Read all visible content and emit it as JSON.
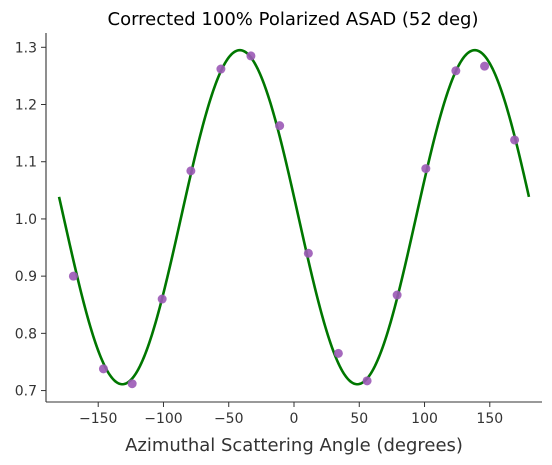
{
  "chart_data": {
    "type": "scatter",
    "title": "Corrected 100% Polarized ASAD (52 deg)",
    "xlabel": "Azimuthal Scattering Angle (degrees)",
    "ylabel": "",
    "xlim": [
      -190,
      190
    ],
    "ylim": [
      0.68,
      1.325
    ],
    "xticks": [
      -150,
      -100,
      -50,
      0,
      50,
      100,
      150
    ],
    "xtick_labels": [
      "−150",
      "−100",
      "−50",
      "0",
      "50",
      "100",
      "150"
    ],
    "yticks": [
      0.7,
      0.8,
      0.9,
      1.0,
      1.1,
      1.2,
      1.3
    ],
    "ytick_labels": [
      "0.7",
      "0.8",
      "0.9",
      "1.0",
      "1.1",
      "1.2",
      "1.3"
    ],
    "grid": false,
    "series": [
      {
        "kind": "scatter",
        "color": "#9b59b6",
        "points": [
          {
            "x": -169,
            "y": 0.9
          },
          {
            "x": -146,
            "y": 0.738
          },
          {
            "x": -124,
            "y": 0.712
          },
          {
            "x": -101,
            "y": 0.86
          },
          {
            "x": -79,
            "y": 1.084
          },
          {
            "x": -56,
            "y": 1.262
          },
          {
            "x": -33,
            "y": 1.285
          },
          {
            "x": -11,
            "y": 1.163
          },
          {
            "x": 11,
            "y": 0.94
          },
          {
            "x": 34,
            "y": 0.765
          },
          {
            "x": 56,
            "y": 0.717
          },
          {
            "x": 79,
            "y": 0.867
          },
          {
            "x": 101,
            "y": 1.088
          },
          {
            "x": 124,
            "y": 1.259
          },
          {
            "x": 146,
            "y": 1.267
          },
          {
            "x": 169,
            "y": 1.138
          }
        ]
      },
      {
        "kind": "line",
        "color": "#007700",
        "function": "1.003 + 0.292*cos(2*(x + 41.5) degrees)",
        "x_range": [
          -180,
          180
        ]
      }
    ]
  }
}
